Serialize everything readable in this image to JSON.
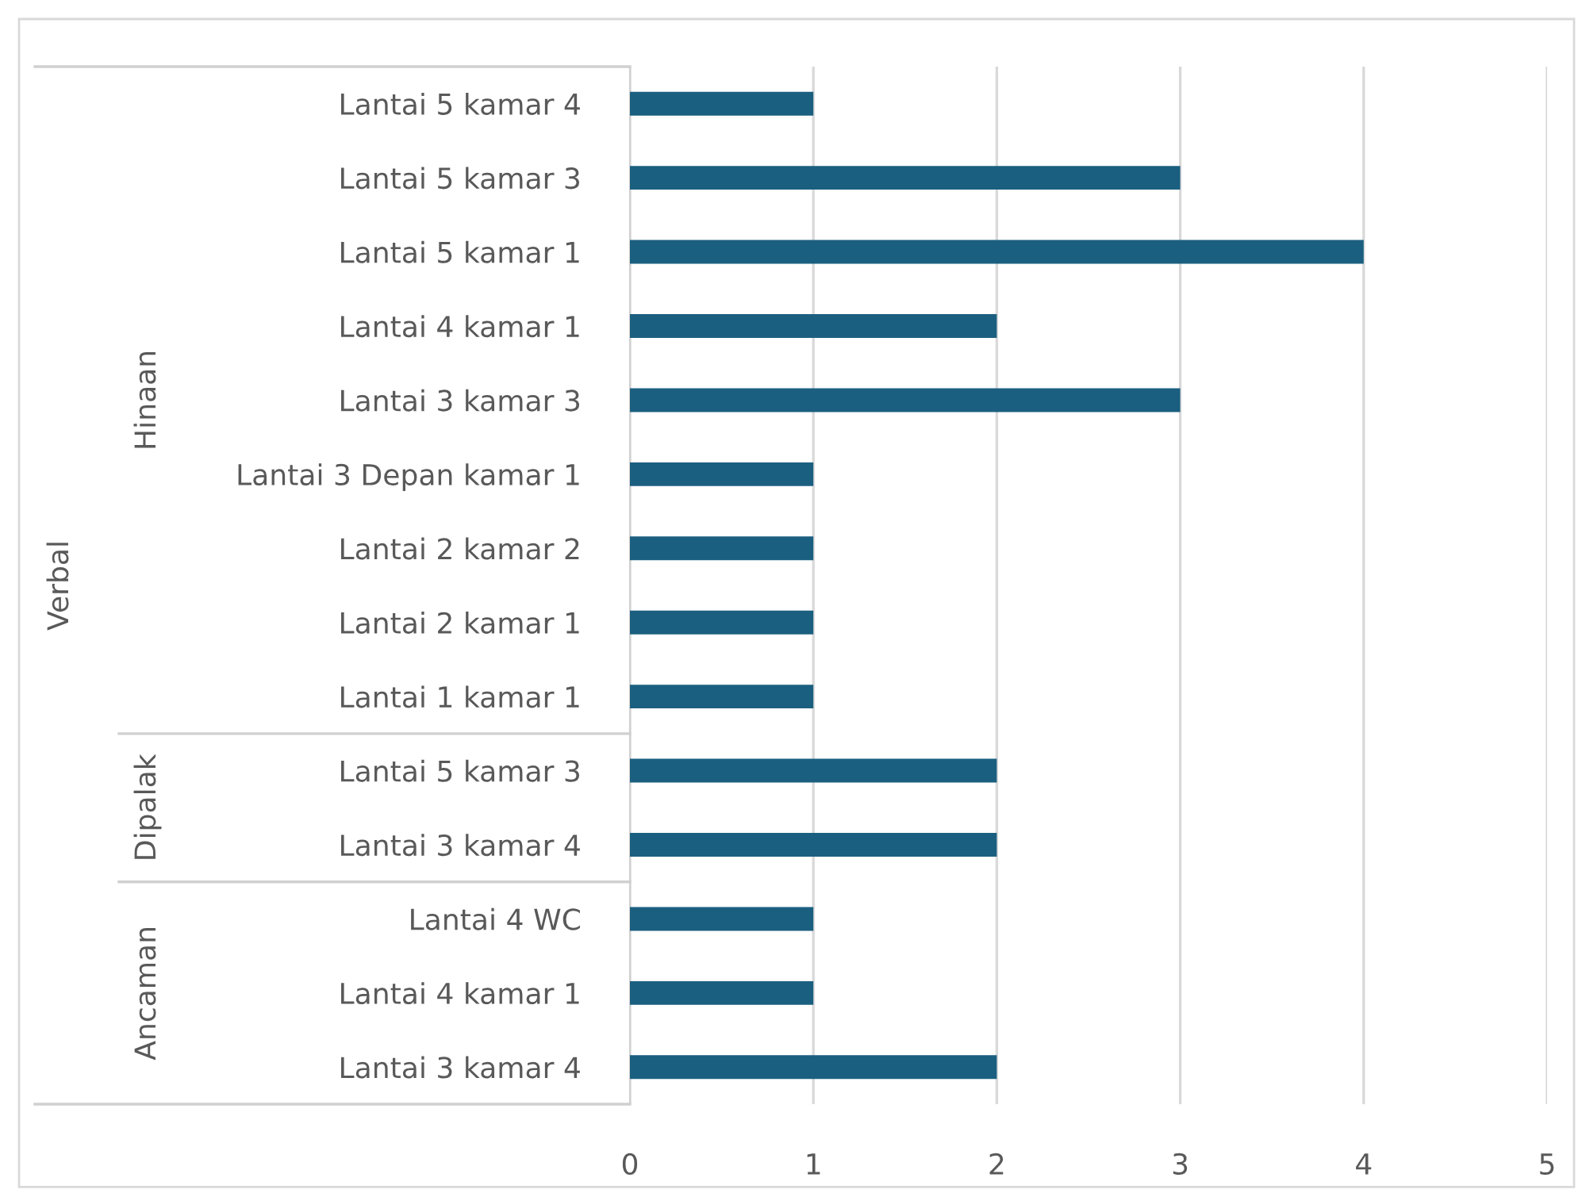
{
  "chart_data": {
    "type": "bar",
    "orientation": "horizontal",
    "categories": [
      "Lantai 5 kamar 4",
      "Lantai 5 kamar 3",
      "Lantai 5 kamar 1",
      "Lantai 4 kamar 1",
      "Lantai 3 kamar 3",
      "Lantai 3 Depan kamar 1",
      "Lantai 2 kamar 2",
      "Lantai 2 kamar 1",
      "Lantai 1 kamar 1",
      "Lantai 5 kamar 3",
      "Lantai 3 kamar 4",
      "Lantai 4 WC",
      "Lantai 4 kamar 1",
      "Lantai 3 kamar 4"
    ],
    "values": [
      1,
      3,
      4,
      2,
      3,
      1,
      1,
      1,
      1,
      2,
      2,
      1,
      1,
      2
    ],
    "color": "#1b5f80",
    "xlim": [
      0,
      5
    ],
    "xticks": [
      0,
      1,
      2,
      3,
      4,
      5
    ],
    "grid": "x",
    "legend": false,
    "annotations": [
      "Hinaan",
      "Dipalak",
      "Ancaman",
      "Verbal"
    ]
  }
}
